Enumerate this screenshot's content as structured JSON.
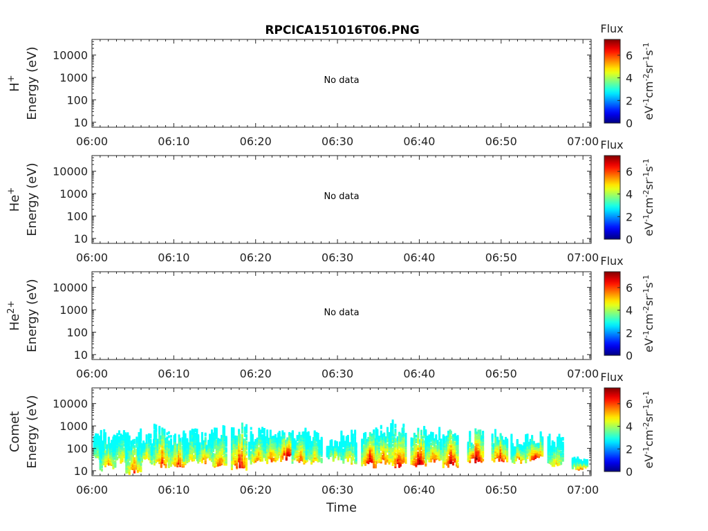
{
  "chart_data": {
    "type": "heatmap",
    "title": "RPCICA151016T06.PNG",
    "xlabel": "Time",
    "x_ticks": [
      "06:00",
      "06:10",
      "06:20",
      "06:30",
      "06:40",
      "06:50",
      "07:00"
    ],
    "x_range_minutes": [
      0,
      61
    ],
    "y_scale": "log",
    "y_ticks": [
      "10",
      "100",
      "1000",
      "10000"
    ],
    "y_range": [
      6,
      50000
    ],
    "colorbar": {
      "title": "Flux",
      "label": "eV-1cm-2sr-1s-1",
      "label_parts": [
        {
          "t": "eV"
        },
        {
          "t": "-1",
          "sup": true
        },
        {
          "t": "cm"
        },
        {
          "t": "-2",
          "sup": true
        },
        {
          "t": "sr"
        },
        {
          "t": "-1",
          "sup": true
        },
        {
          "t": "s"
        },
        {
          "t": "-1",
          "sup": true
        }
      ],
      "range": [
        0,
        7.4
      ],
      "ticks": [
        "0",
        "2",
        "4",
        "6"
      ],
      "colormap": "jet"
    },
    "panels": [
      {
        "species": "H+",
        "ylabel_base": "H",
        "ylabel_sup": "+",
        "ylabel_line2": "Energy (eV)",
        "no_data_text": "No data",
        "show_xlabel": false
      },
      {
        "species": "He+",
        "ylabel_base": "He",
        "ylabel_sup": "+",
        "ylabel_line2": "Energy (eV)",
        "no_data_text": "No data",
        "show_xlabel": false
      },
      {
        "species": "He2+",
        "ylabel_base": "He",
        "ylabel_sup": "2+",
        "ylabel_line2": "Energy (eV)",
        "no_data_text": "No data",
        "show_xlabel": false
      },
      {
        "species": "Comet",
        "ylabel_base": "Comet",
        "ylabel_sup": "",
        "ylabel_line2": "Energy (eV)",
        "no_data_text": "",
        "show_xlabel": true,
        "bursts": [
          {
            "t": 0.5,
            "e_low": 40,
            "e_high": 600,
            "peak": 4.2
          },
          {
            "t": 1.8,
            "e_low": 15,
            "e_high": 400,
            "peak": 5.5
          },
          {
            "t": 3.5,
            "e_low": 30,
            "e_high": 500,
            "peak": 5.0
          },
          {
            "t": 5.0,
            "e_low": 10,
            "e_high": 300,
            "peak": 6.0
          },
          {
            "t": 6.5,
            "e_low": 30,
            "e_high": 500,
            "peak": 5.0
          },
          {
            "t": 8.4,
            "e_low": 20,
            "e_high": 800,
            "peak": 6.2
          },
          {
            "t": 10.4,
            "e_low": 20,
            "e_high": 400,
            "peak": 6.4
          },
          {
            "t": 12.0,
            "e_low": 30,
            "e_high": 500,
            "peak": 5.0
          },
          {
            "t": 13.6,
            "e_low": 30,
            "e_high": 400,
            "peak": 5.6
          },
          {
            "t": 15.4,
            "e_low": 20,
            "e_high": 700,
            "peak": 6.0
          },
          {
            "t": 17.9,
            "e_low": 15,
            "e_high": 900,
            "peak": 7.0
          },
          {
            "t": 20.0,
            "e_low": 30,
            "e_high": 600,
            "peak": 5.8
          },
          {
            "t": 21.8,
            "e_low": 30,
            "e_high": 600,
            "peak": 6.0
          },
          {
            "t": 23.7,
            "e_low": 40,
            "e_high": 800,
            "peak": 7.2
          },
          {
            "t": 25.3,
            "e_low": 30,
            "e_high": 600,
            "peak": 6.0
          },
          {
            "t": 27.0,
            "e_low": 30,
            "e_high": 500,
            "peak": 5.2
          },
          {
            "t": 29.5,
            "e_low": 40,
            "e_high": 300,
            "peak": 4.8
          },
          {
            "t": 31.3,
            "e_low": 30,
            "e_high": 500,
            "peak": 5.0
          },
          {
            "t": 33.8,
            "e_low": 20,
            "e_high": 700,
            "peak": 7.0
          },
          {
            "t": 35.5,
            "e_low": 30,
            "e_high": 800,
            "peak": 6.2
          },
          {
            "t": 37.3,
            "e_low": 20,
            "e_high": 1200,
            "peak": 6.8
          },
          {
            "t": 39.8,
            "e_low": 20,
            "e_high": 800,
            "peak": 7.4
          },
          {
            "t": 41.6,
            "e_low": 30,
            "e_high": 600,
            "peak": 6.0
          },
          {
            "t": 43.7,
            "e_low": 20,
            "e_high": 800,
            "peak": 7.0
          },
          {
            "t": 46.8,
            "e_low": 30,
            "e_high": 500,
            "peak": 7.4
          },
          {
            "t": 49.7,
            "e_low": 30,
            "e_high": 500,
            "peak": 6.8
          },
          {
            "t": 52.0,
            "e_low": 30,
            "e_high": 300,
            "peak": 5.6
          },
          {
            "t": 54.0,
            "e_low": 40,
            "e_high": 400,
            "peak": 6.8
          },
          {
            "t": 56.5,
            "e_low": 20,
            "e_high": 300,
            "peak": 5.2
          },
          {
            "t": 59.5,
            "e_low": 12,
            "e_high": 50,
            "peak": 6.0
          }
        ]
      }
    ]
  }
}
